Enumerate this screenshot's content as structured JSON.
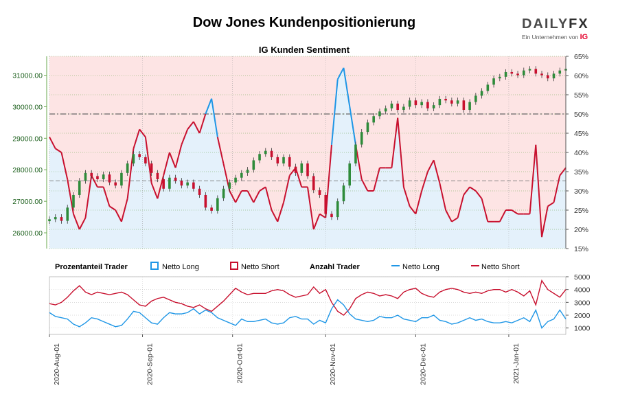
{
  "title": "Dow Jones Kundenpositionierung",
  "brand": {
    "logo_main": "DAILY",
    "logo_accent": "FX",
    "tagline": "Ein Unternehmen von",
    "tagline_mark": "IG"
  },
  "chart_data": [
    {
      "type": "candlestick+line",
      "title": "IG Kunden Sentiment",
      "x_labels": [
        "2020-Aug-01",
        "2020-Sep-01",
        "2020-Oct-01",
        "2020-Nov-01",
        "2020-Dec-01",
        "2021-Jan-01"
      ],
      "y_left_ticks": [
        "26000.00",
        "27000.00",
        "28000.00",
        "29000.00",
        "30000.00",
        "31000.00"
      ],
      "y_left_range": [
        25500,
        31600
      ],
      "y_right_ticks": [
        "15%",
        "20%",
        "25%",
        "30%",
        "35%",
        "40%",
        "45%",
        "50%",
        "55%",
        "60%",
        "65%"
      ],
      "y_right_range": [
        15,
        65
      ],
      "reference_lines": {
        "price_mid": 27650,
        "percent_50": 50
      },
      "series": [
        {
          "name": "Kurs",
          "x": [
            0,
            2,
            4,
            6,
            8,
            10,
            12,
            14,
            16,
            18,
            20,
            22,
            24,
            26,
            28,
            30,
            32,
            34,
            36,
            38,
            40,
            42,
            44,
            46,
            48,
            50,
            52,
            54,
            56,
            58,
            60,
            62,
            64,
            66,
            68,
            70,
            72,
            74,
            76,
            78,
            80,
            82,
            84,
            86,
            88,
            90,
            92,
            94,
            96,
            98,
            100,
            102,
            104,
            106,
            108,
            110,
            112,
            114,
            116,
            118,
            120,
            122,
            124,
            126,
            128,
            130,
            132,
            134,
            136,
            138,
            140,
            142,
            144,
            146,
            148,
            150,
            152,
            154,
            156,
            158,
            160,
            162,
            164,
            166,
            168,
            170,
            172
          ],
          "values": [
            26430,
            26500,
            26380,
            26800,
            27200,
            27650,
            27900,
            27800,
            27700,
            27850,
            27600,
            27500,
            27900,
            28200,
            28500,
            28400,
            28200,
            27900,
            27700,
            27400,
            27750,
            27650,
            27500,
            27600,
            27400,
            27200,
            26800,
            26700,
            27100,
            27400,
            27600,
            27750,
            27900,
            28000,
            28300,
            28500,
            28600,
            28400,
            28200,
            28400,
            28100,
            27900,
            28200,
            27800,
            27350,
            27200,
            26600,
            26500,
            27000,
            27500,
            28200,
            28800,
            29200,
            29500,
            29700,
            29850,
            29950,
            30100,
            29900,
            30000,
            30200,
            30050,
            30150,
            29950,
            30050,
            30250,
            30200,
            30100,
            30200,
            29900,
            30150,
            30350,
            30500,
            30700,
            30900,
            30950,
            31100,
            31050,
            31000,
            31150,
            31200,
            31050,
            31000,
            30900,
            31050,
            31150,
            31200
          ]
        },
        {
          "name": "Netto Long %",
          "x": [
            0,
            2,
            4,
            6,
            8,
            10,
            12,
            14,
            16,
            18,
            20,
            22,
            24,
            26,
            28,
            30,
            32,
            34,
            36,
            38,
            40,
            42,
            44,
            46,
            48,
            50,
            52,
            54,
            56,
            58,
            60,
            62,
            64,
            66,
            68,
            70,
            72,
            74,
            76,
            78,
            80,
            82,
            84,
            86,
            88,
            90,
            92,
            94,
            96,
            98,
            100,
            102,
            104,
            106,
            108,
            110,
            112,
            114,
            116,
            118,
            120,
            122,
            124,
            126,
            128,
            130,
            132,
            134,
            136,
            138,
            140,
            142,
            144,
            146,
            148,
            150,
            152,
            154,
            156,
            158,
            160,
            162,
            164,
            166,
            168,
            170,
            172
          ],
          "values": [
            44,
            41,
            40,
            33,
            24,
            20,
            23,
            34,
            31,
            31,
            26,
            25,
            22,
            28,
            41,
            46,
            44,
            32,
            28,
            34,
            40,
            36,
            42,
            46,
            48,
            45,
            50,
            54,
            44,
            37,
            30,
            27,
            30,
            30,
            27,
            30,
            31,
            25,
            22,
            27,
            34,
            36,
            31,
            31,
            20,
            24,
            23,
            42,
            59,
            62,
            52,
            42,
            33,
            30,
            30,
            36,
            36,
            36,
            49,
            31,
            26,
            24,
            30,
            35,
            38,
            32,
            25,
            22,
            23,
            29,
            31,
            30,
            28,
            22,
            22,
            22,
            25,
            25,
            24,
            24,
            24,
            42,
            18,
            26,
            27,
            34,
            36
          ]
        }
      ]
    },
    {
      "type": "line",
      "title": "Anzahl Trader",
      "x_labels": [
        "2020-Aug-01",
        "2020-Sep-01",
        "2020-Oct-01",
        "2020-Nov-01",
        "2020-Dec-01",
        "2021-Jan-01"
      ],
      "y_ticks": [
        "1000",
        "2000",
        "3000",
        "4000",
        "5000"
      ],
      "y_range": [
        500,
        5000
      ],
      "series": [
        {
          "name": "Netto Long",
          "x": [
            0,
            2,
            4,
            6,
            8,
            10,
            12,
            14,
            16,
            18,
            20,
            22,
            24,
            26,
            28,
            30,
            32,
            34,
            36,
            38,
            40,
            42,
            44,
            46,
            48,
            50,
            52,
            54,
            56,
            58,
            60,
            62,
            64,
            66,
            68,
            70,
            72,
            74,
            76,
            78,
            80,
            82,
            84,
            86,
            88,
            90,
            92,
            94,
            96,
            98,
            100,
            102,
            104,
            106,
            108,
            110,
            112,
            114,
            116,
            118,
            120,
            122,
            124,
            126,
            128,
            130,
            132,
            134,
            136,
            138,
            140,
            142,
            144,
            146,
            148,
            150,
            152,
            154,
            156,
            158,
            160,
            162,
            164,
            166,
            168,
            170,
            172
          ],
          "values": [
            2200,
            1900,
            1800,
            1700,
            1300,
            1100,
            1400,
            1800,
            1700,
            1500,
            1300,
            1100,
            1200,
            1700,
            2300,
            2200,
            1800,
            1400,
            1300,
            1800,
            2200,
            2100,
            2100,
            2200,
            2500,
            2100,
            2400,
            2200,
            1800,
            1600,
            1400,
            1200,
            1700,
            1500,
            1500,
            1600,
            1700,
            1400,
            1300,
            1400,
            1800,
            1900,
            1700,
            1700,
            1300,
            1600,
            1400,
            2500,
            3200,
            2800,
            2100,
            1700,
            1600,
            1500,
            1600,
            1900,
            1800,
            1800,
            2000,
            1700,
            1600,
            1500,
            1800,
            1800,
            2000,
            1600,
            1500,
            1300,
            1400,
            1600,
            1800,
            1600,
            1700,
            1500,
            1400,
            1400,
            1500,
            1400,
            1600,
            1800,
            1500,
            2400,
            1000,
            1500,
            1700,
            2400,
            1700
          ]
        },
        {
          "name": "Netto Short",
          "x": [
            0,
            2,
            4,
            6,
            8,
            10,
            12,
            14,
            16,
            18,
            20,
            22,
            24,
            26,
            28,
            30,
            32,
            34,
            36,
            38,
            40,
            42,
            44,
            46,
            48,
            50,
            52,
            54,
            56,
            58,
            60,
            62,
            64,
            66,
            68,
            70,
            72,
            74,
            76,
            78,
            80,
            82,
            84,
            86,
            88,
            90,
            92,
            94,
            96,
            98,
            100,
            102,
            104,
            106,
            108,
            110,
            112,
            114,
            116,
            118,
            120,
            122,
            124,
            126,
            128,
            130,
            132,
            134,
            136,
            138,
            140,
            142,
            144,
            146,
            148,
            150,
            152,
            154,
            156,
            158,
            160,
            162,
            164,
            166,
            168,
            170,
            172
          ],
          "values": [
            2900,
            2800,
            3000,
            3400,
            3900,
            4300,
            3800,
            3600,
            3800,
            3700,
            3600,
            3700,
            3800,
            3600,
            3200,
            2800,
            2700,
            3100,
            3300,
            3400,
            3200,
            3000,
            2900,
            2700,
            2600,
            2800,
            2500,
            2300,
            2700,
            3100,
            3600,
            4100,
            3800,
            3600,
            3700,
            3700,
            3700,
            3900,
            4000,
            3900,
            3600,
            3400,
            3500,
            3600,
            4200,
            3700,
            4000,
            3000,
            2300,
            2000,
            2500,
            3300,
            3600,
            3800,
            3700,
            3500,
            3600,
            3500,
            3300,
            3800,
            4000,
            4100,
            3700,
            3500,
            3400,
            3800,
            4000,
            4100,
            4000,
            3800,
            3700,
            3800,
            3700,
            3900,
            4000,
            4000,
            3800,
            4000,
            3800,
            3500,
            3900,
            2800,
            4700,
            4000,
            3700,
            3400,
            4000
          ]
        }
      ]
    }
  ],
  "legend": {
    "group1_label": "Prozentanteil Trader",
    "pct_long": "Netto Long",
    "pct_short": "Netto Short",
    "group2_label": "Anzahl Trader",
    "cnt_long": "Netto Long",
    "cnt_short": "Netto Short"
  },
  "colors": {
    "long": "#1e96e6",
    "short": "#c8102e",
    "candle_up": "#2e8b3a",
    "candle_down": "#c8102e",
    "bg_short": "#fde4e4",
    "bg_long": "#e4f1fb",
    "grid": "#6aa84f",
    "ref_line": "#777777"
  }
}
